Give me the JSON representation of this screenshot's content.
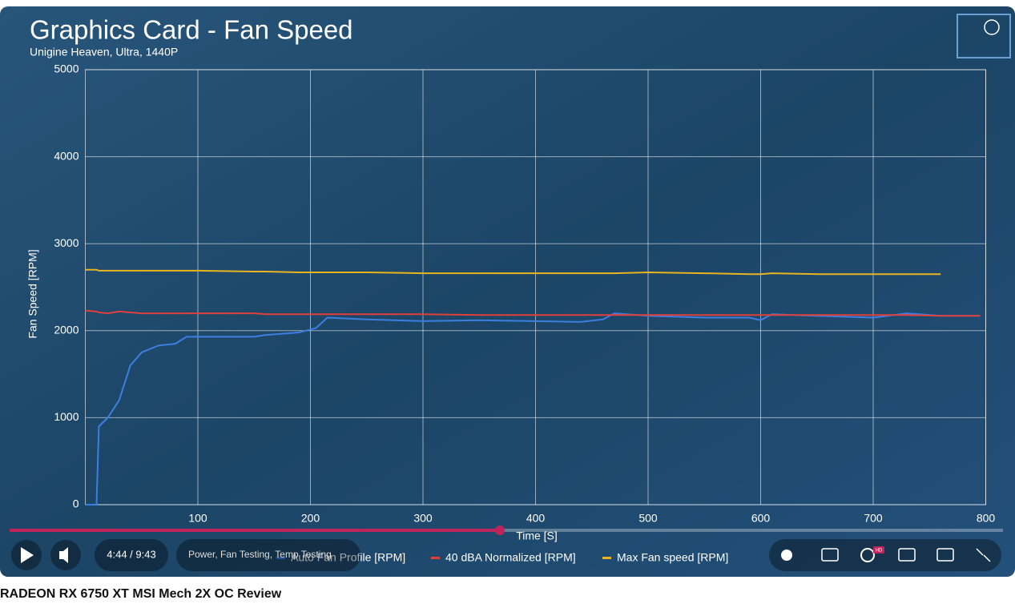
{
  "chart_data": {
    "type": "line",
    "title": "Graphics Card - Fan Speed",
    "subtitle": "Unigine Heaven, Ultra, 1440P",
    "x_label": "Time [S]",
    "y_label": "Fan Speed [RPM]",
    "x": [
      0,
      10,
      12,
      20,
      30,
      40,
      50,
      65,
      80,
      90,
      100,
      150,
      160,
      190,
      205,
      215,
      250,
      300,
      350,
      400,
      440,
      460,
      470,
      500,
      550,
      590,
      600,
      610,
      650,
      700,
      730,
      760,
      795
    ],
    "series": [
      {
        "name": "Auto Fan Profile [RPM]",
        "color": "#3d7fe0",
        "values": [
          0,
          0,
          900,
          1000,
          1200,
          1600,
          1750,
          1830,
          1850,
          1930,
          1930,
          1930,
          1950,
          1980,
          2030,
          2150,
          2130,
          2110,
          2120,
          2110,
          2100,
          2130,
          2200,
          2170,
          2150,
          2150,
          2120,
          2190,
          2170,
          2150,
          2200,
          2170,
          2170
        ]
      },
      {
        "name": "40 dBA Normalized [RPM]",
        "color": "#e0403a",
        "values": [
          2230,
          2220,
          2210,
          2200,
          2220,
          2210,
          2200,
          2200,
          2200,
          2200,
          2200,
          2200,
          2190,
          2190,
          2190,
          2190,
          2190,
          2190,
          2180,
          2180,
          2180,
          2180,
          2180,
          2180,
          2180,
          2180,
          2180,
          2180,
          2180,
          2180,
          2180,
          2170,
          2170
        ]
      },
      {
        "name": "Max Fan speed [RPM]",
        "color": "#e8b520",
        "values": [
          2700,
          2700,
          2690,
          2690,
          2690,
          2690,
          2690,
          2690,
          2690,
          2690,
          2690,
          2680,
          2680,
          2670,
          2670,
          2670,
          2670,
          2660,
          2660,
          2660,
          2660,
          2660,
          2660,
          2670,
          2660,
          2650,
          2650,
          2660,
          2650,
          2650,
          2650,
          2650,
          null
        ]
      }
    ],
    "xlim": [
      0,
      800
    ],
    "xticks": [
      100,
      200,
      300,
      400,
      500,
      600,
      700,
      800
    ],
    "ylim": [
      0,
      5000
    ],
    "yticks": [
      0,
      1000,
      2000,
      3000,
      4000,
      5000
    ],
    "grid": true,
    "legend": "bottom"
  },
  "player": {
    "time": "4:44 / 9:43",
    "chapter": "Power, Fan Testing, Temp Testing",
    "video_title": "RADEON RX 6750 XT MSI Mech 2X OC Review",
    "hd": "HD"
  }
}
